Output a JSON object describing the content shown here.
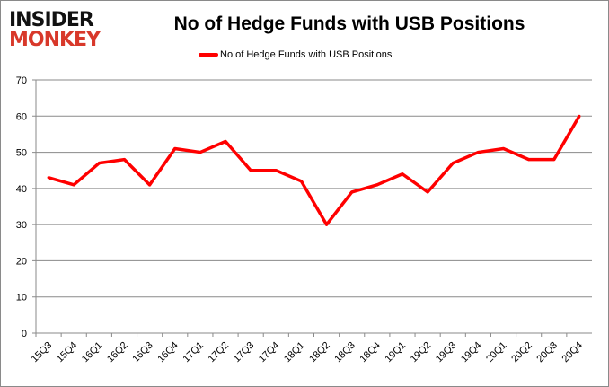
{
  "logo": {
    "line1": "INSIDER",
    "line2": "MONKEY"
  },
  "chart_data": {
    "type": "line",
    "title": "No of Hedge Funds with USB Positions",
    "xlabel": "",
    "ylabel": "",
    "categories": [
      "15Q3",
      "15Q4",
      "16Q1",
      "16Q2",
      "16Q3",
      "16Q4",
      "17Q1",
      "17Q2",
      "17Q3",
      "17Q4",
      "18Q1",
      "18Q2",
      "18Q3",
      "18Q4",
      "19Q1",
      "19Q2",
      "19Q3",
      "19Q4",
      "20Q1",
      "20Q2",
      "20Q3",
      "20Q4"
    ],
    "series": [
      {
        "name": "No of Hedge Funds with USB Positions",
        "color": "#ff0000",
        "values": [
          43,
          41,
          47,
          48,
          41,
          51,
          50,
          53,
          45,
          45,
          42,
          30,
          39,
          41,
          44,
          39,
          47,
          50,
          51,
          48,
          48,
          60
        ]
      }
    ],
    "ylim": [
      0,
      70
    ],
    "yticks": [
      0,
      10,
      20,
      30,
      40,
      50,
      60,
      70
    ],
    "grid": true,
    "legend": "top-center"
  }
}
